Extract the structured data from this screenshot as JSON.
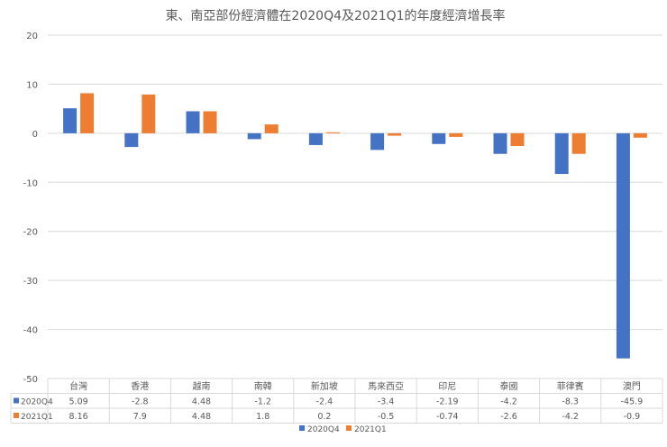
{
  "chart_data": {
    "type": "bar",
    "title": "東、南亞部份經濟體在2020Q4及2021Q1的年度經濟增長率",
    "categories": [
      "台灣",
      "香港",
      "越南",
      "南韓",
      "新加坡",
      "馬來西亞",
      "印尼",
      "泰國",
      "菲律賓",
      "澳門"
    ],
    "series": [
      {
        "name": "2020Q4",
        "color": "#4472C4",
        "values": [
          5.09,
          -2.8,
          4.48,
          -1.2,
          -2.4,
          -3.4,
          -2.19,
          -4.2,
          -8.3,
          -45.9
        ],
        "labels": [
          "5.09",
          "-2.8",
          "4.48",
          "-1.2",
          "-2.4",
          "-3.4",
          "-2.19",
          "-4.2",
          "-8.3",
          "-45.9"
        ]
      },
      {
        "name": "2021Q1",
        "color": "#ED7D31",
        "values": [
          8.16,
          7.9,
          4.48,
          1.8,
          0.2,
          -0.5,
          -0.74,
          -2.6,
          -4.2,
          -0.9
        ],
        "labels": [
          "8.16",
          "7.9",
          "4.48",
          "1.8",
          "0.2",
          "-0.5",
          "-0.74",
          "-2.6",
          "-4.2",
          "-0.9"
        ]
      }
    ],
    "ylim": [
      -50,
      20
    ],
    "yticks": [
      20,
      10,
      0,
      -10,
      -20,
      -30,
      -40,
      -50
    ],
    "grid": true,
    "data_table": true,
    "legend": "bottom"
  }
}
